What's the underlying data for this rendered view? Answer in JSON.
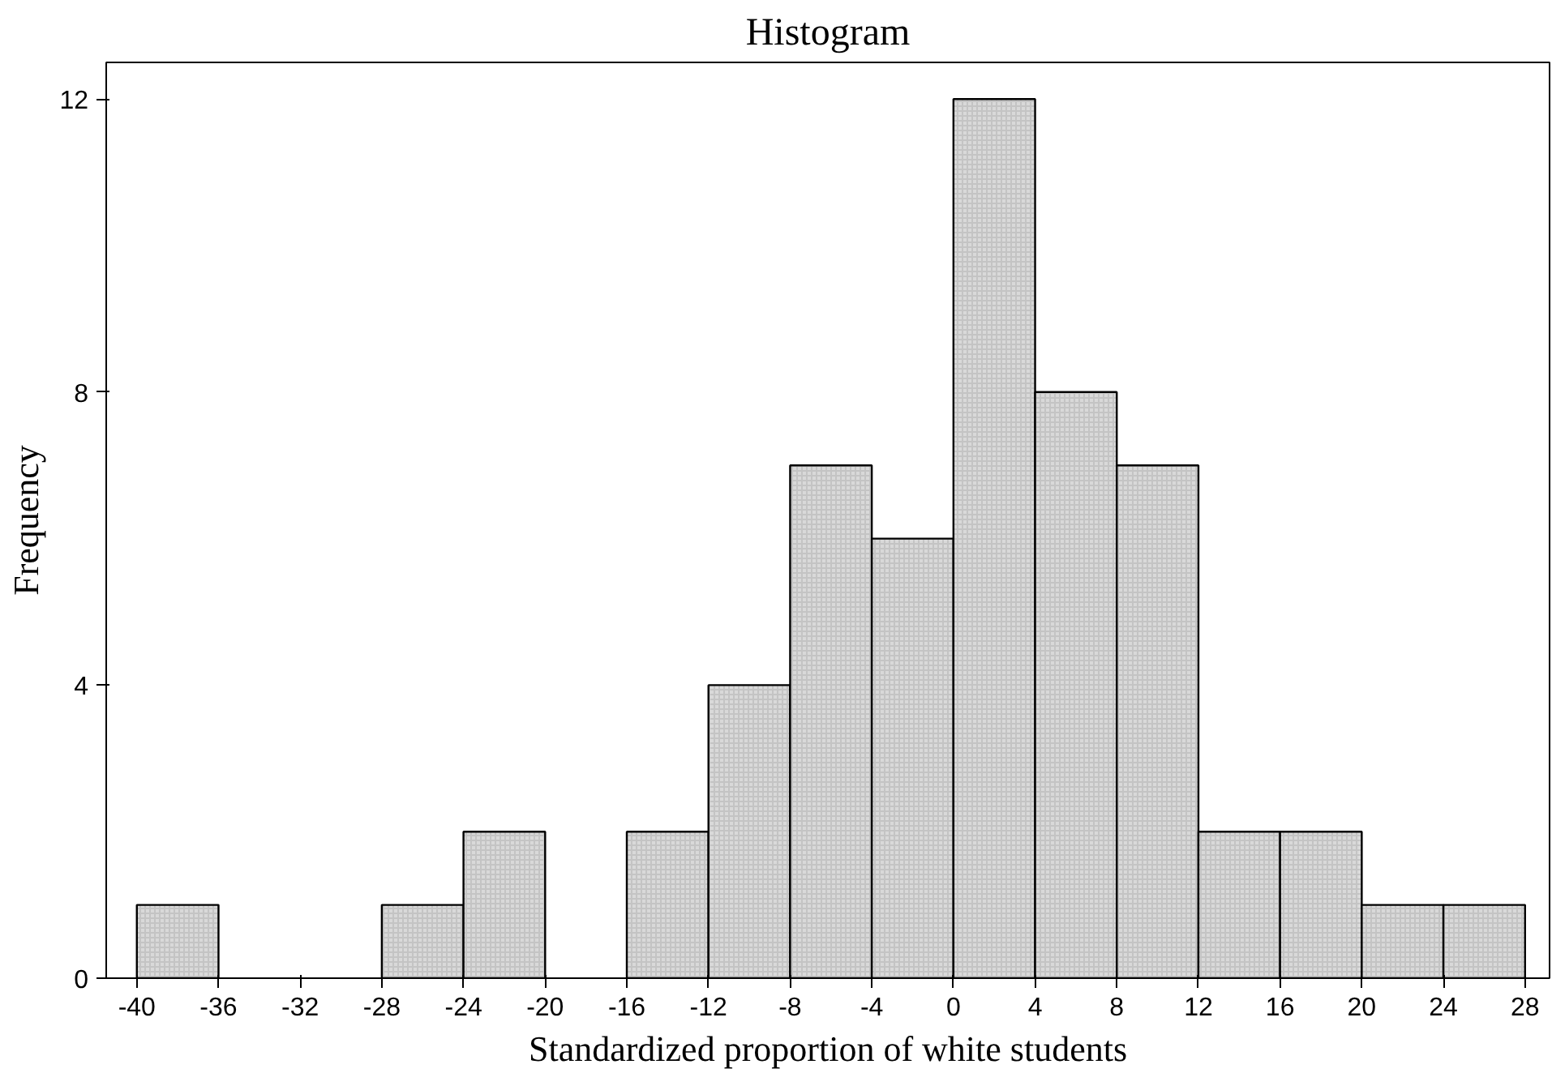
{
  "chart_data": {
    "type": "histogram",
    "title": "Histogram",
    "xlabel": "Standardized proportion of white students",
    "ylabel": "Frequency",
    "bins": [
      -40,
      -36,
      -32,
      -28,
      -24,
      -20,
      -16,
      -12,
      -8,
      -4,
      0,
      4,
      8,
      12,
      16,
      20,
      24,
      28
    ],
    "values": [
      1,
      0,
      0,
      1,
      2,
      0,
      2,
      4,
      7,
      6,
      12,
      8,
      7,
      2,
      2,
      1,
      1
    ],
    "color": "#d9d9d9",
    "xlim": [
      -41.5,
      29.2
    ],
    "ylim": [
      0,
      12.5
    ],
    "xticks": [
      -40,
      -36,
      -32,
      -28,
      -24,
      -20,
      -16,
      -12,
      -8,
      -4,
      0,
      4,
      8,
      12,
      16,
      20,
      24,
      28
    ],
    "yticks": [
      0,
      4,
      8,
      12
    ],
    "grid": false
  }
}
